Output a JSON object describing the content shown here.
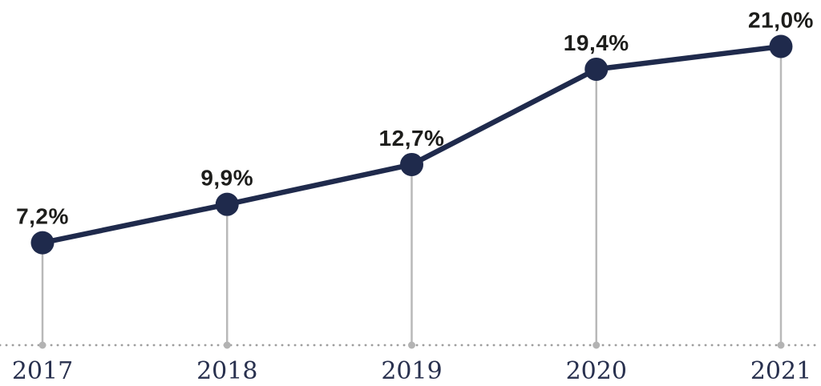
{
  "chart_data": {
    "type": "line",
    "x": [
      "2017",
      "2018",
      "2019",
      "2020",
      "2021"
    ],
    "values": [
      7.2,
      9.9,
      12.7,
      19.4,
      21.0
    ],
    "point_labels": [
      "7,2%",
      "9,9%",
      "12,7%",
      "19,4%",
      "21,0%"
    ],
    "title": "",
    "xlabel": "",
    "ylabel": "",
    "ylim": [
      0,
      24
    ],
    "grid": false,
    "legend": false,
    "decimal_separator": ",",
    "colors": {
      "line": "#1f2a4c",
      "marker": "#1f2a4c",
      "value_label": "#1d1d1b",
      "year_label": "#28304e",
      "stem": "#b9b9b9",
      "stem_dot": "#b3b3b3",
      "baseline_dots": "#9e9e9e"
    }
  }
}
